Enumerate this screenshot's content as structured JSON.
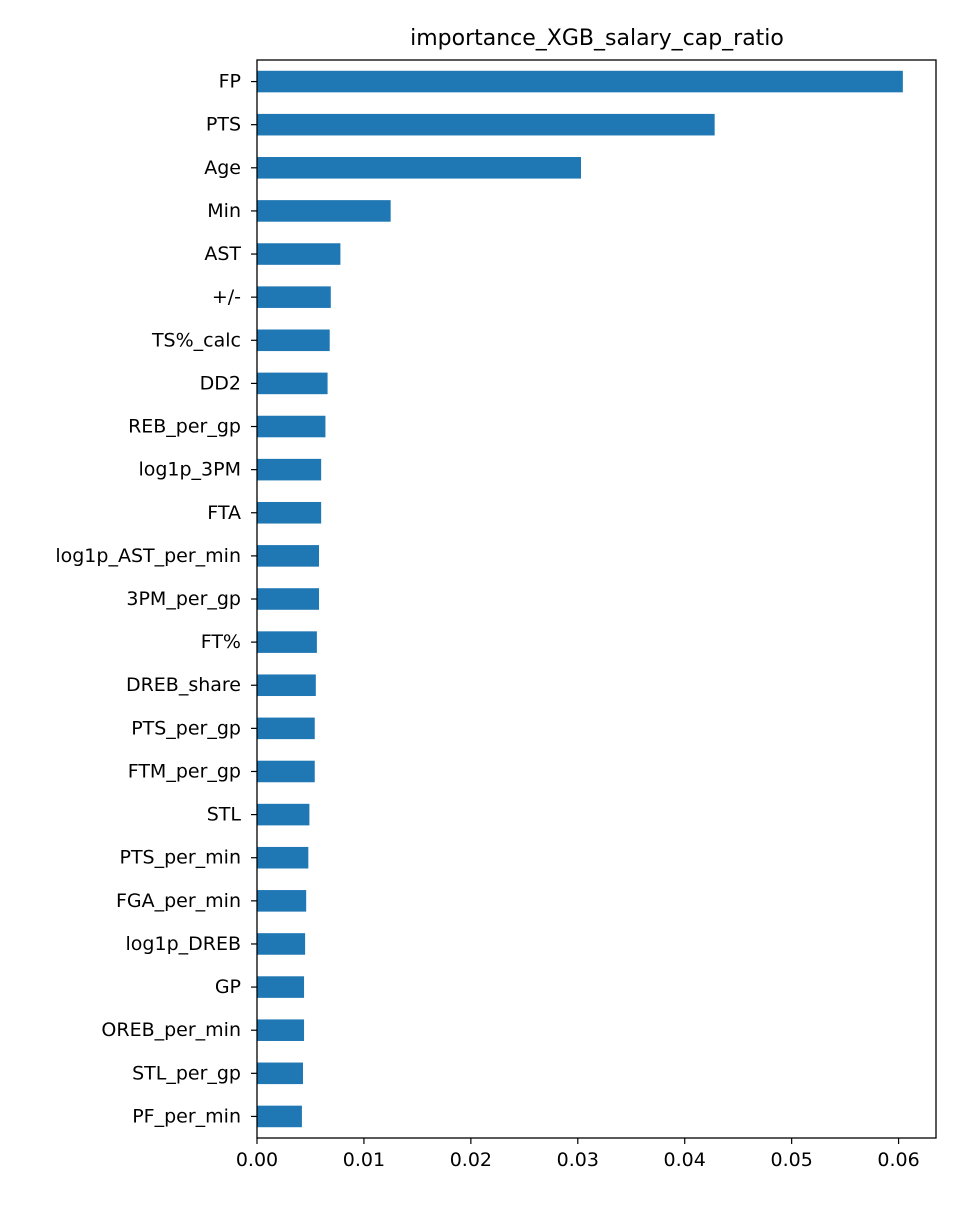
{
  "chart_data": {
    "type": "bar",
    "orientation": "horizontal",
    "title": "importance_XGB_salary_cap_ratio",
    "xlabel": "",
    "ylabel": "",
    "xlim": [
      0,
      0.0635
    ],
    "xticks": [
      0.0,
      0.01,
      0.02,
      0.03,
      0.04,
      0.05,
      0.06
    ],
    "xtick_labels": [
      "0.00",
      "0.01",
      "0.02",
      "0.03",
      "0.04",
      "0.05",
      "0.06"
    ],
    "bar_color": "#1f77b4",
    "grid": false,
    "categories": [
      "FP",
      "PTS",
      "Age",
      "Min",
      "AST",
      "+/-",
      "TS%_calc",
      "DD2",
      "REB_per_gp",
      "log1p_3PM",
      "FTA",
      "log1p_AST_per_min",
      "3PM_per_gp",
      "FT%",
      "DREB_share",
      "PTS_per_gp",
      "FTM_per_gp",
      "STL",
      "PTS_per_min",
      "FGA_per_min",
      "log1p_DREB",
      "GP",
      "OREB_per_min",
      "STL_per_gp",
      "PF_per_min"
    ],
    "values": [
      0.0604,
      0.0428,
      0.0303,
      0.0125,
      0.0078,
      0.0069,
      0.0068,
      0.0066,
      0.0064,
      0.006,
      0.006,
      0.0058,
      0.0058,
      0.0056,
      0.0055,
      0.0054,
      0.0054,
      0.0049,
      0.0048,
      0.0046,
      0.0045,
      0.0044,
      0.0044,
      0.0043,
      0.0042
    ]
  }
}
